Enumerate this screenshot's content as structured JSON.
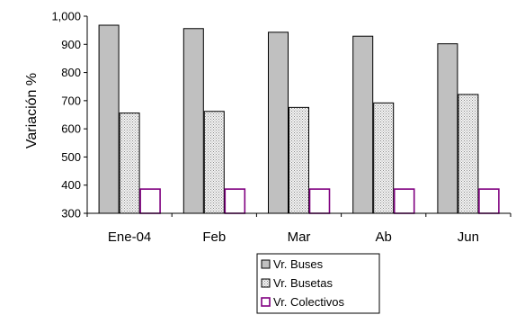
{
  "chart_data": {
    "type": "bar",
    "ylabel": "Variación %",
    "xlabel": "",
    "title": "",
    "categories": [
      "Ene-04",
      "Feb",
      "Mar",
      "Ab",
      "Jun"
    ],
    "ylim": [
      300,
      1000
    ],
    "yticks": [
      "300",
      "400",
      "500",
      "600",
      "700",
      "800",
      "900",
      "1,000"
    ],
    "grid": false,
    "legend_position": "bottom",
    "series": [
      {
        "name": "Vr. Buses",
        "values": [
          968,
          956,
          943,
          929,
          902
        ],
        "fill": "#c0c0c0",
        "stroke": "#000000",
        "pattern": "solid"
      },
      {
        "name": "Vr. Busetas",
        "values": [
          656,
          662,
          676,
          692,
          722
        ],
        "fill": "#ececec",
        "stroke": "#000000",
        "pattern": "dots"
      },
      {
        "name": "Vr. Colectivos",
        "values": [
          386,
          386,
          386,
          386,
          386
        ],
        "fill": "#ffffff",
        "stroke": "#800080",
        "pattern": "solid"
      }
    ]
  }
}
